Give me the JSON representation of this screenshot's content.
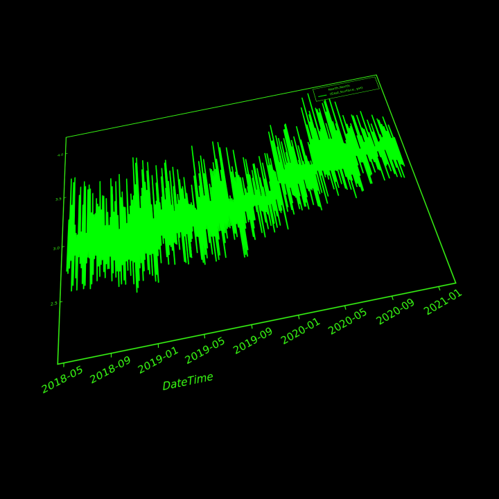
{
  "chart_data": {
    "type": "line",
    "title": "",
    "xlabel": "DateTime",
    "ylabel": "",
    "x_tick_labels": [
      "2018-05",
      "2018-09",
      "2019-01",
      "2019-05",
      "2019-09",
      "2020-01",
      "2020-05",
      "2020-09",
      "2021-01"
    ],
    "y_tick_labels": [
      "2.5",
      "3.0",
      "3.5",
      "4.0"
    ],
    "xlim": [
      "2018-04-15",
      "2021-02-15"
    ],
    "ylim": [
      2.0,
      4.2
    ],
    "grid": false,
    "legend": {
      "placement": "top-right",
      "entries": [
        "North,North",
        "(East,Surface, pH)"
      ]
    },
    "series": [
      {
        "name": "North,North (East,Surface, pH)",
        "color": "#00ff00",
        "segments": [
          {
            "start": "2018-05-01",
            "end": "2018-09-10",
            "base": 2.55,
            "spread": 1.15
          },
          {
            "start": "2018-09-10",
            "end": "2019-01-20",
            "base": 2.45,
            "spread": 1.35
          },
          {
            "start": "2019-01-20",
            "end": "2019-05-20",
            "base": 2.6,
            "spread": 1.1
          },
          {
            "start": "2019-05-20",
            "end": "2019-10-05",
            "base": 2.55,
            "spread": 1.25
          },
          {
            "start": "2019-10-05",
            "end": "2020-01-25",
            "base": 2.7,
            "spread": 0.85
          },
          {
            "start": "2020-01-25",
            "end": "2020-05-15",
            "base": 2.85,
            "spread": 1.0
          },
          {
            "start": "2020-05-15",
            "end": "2020-09-20",
            "base": 2.9,
            "spread": 1.25
          },
          {
            "start": "2020-09-20",
            "end": "2021-01-31",
            "base": 3.0,
            "spread": 0.8
          }
        ]
      }
    ]
  },
  "colors": {
    "background": "#000000",
    "line": "#00ff00",
    "axis": "#39ff14"
  }
}
